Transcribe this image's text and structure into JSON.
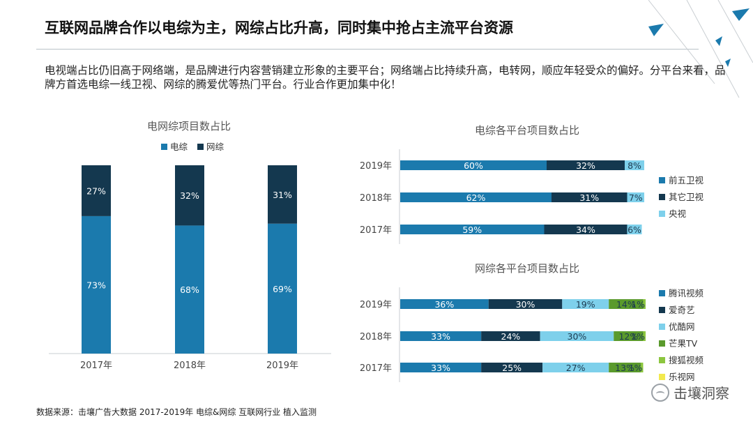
{
  "header": {
    "title": "互联网品牌合作以电综为主，网综占比升高，同时集中抢占主流平台资源",
    "subtitle": "电视端占比仍旧高于网络端，是品牌进行内容营销建立形象的主要平台；网络端占比持续升高，电转网，顺应年轻受众的偏好。分平台来看，品牌方首选电综一线卫视、网综的腾爱优等热门平台。行业合作更加集中化！"
  },
  "footer": {
    "source": "数据来源：击壤广告大数据 2017-2019年 电综&网综 互联网行业 植入监测",
    "brand": "击壤洞察"
  },
  "colors": {
    "dianzong": "#1b7aad",
    "wangzong": "#14384f",
    "qianwu": "#1b7aad",
    "qita": "#14384f",
    "yangshi": "#7ed0eb",
    "tengxun": "#1b7aad",
    "aiqiyi": "#14384f",
    "youku": "#7ed0eb",
    "mangguo": "#5a9a2c",
    "souhu": "#8cc63f",
    "leshi": "#f2e94e",
    "decor": "#1b7aad"
  },
  "chart_data": [
    {
      "type": "bar",
      "stacked": true,
      "orientation": "vertical",
      "title": "电网综项目数占比",
      "categories": [
        "2017年",
        "2018年",
        "2019年"
      ],
      "series": [
        {
          "name": "电综",
          "values": [
            73,
            68,
            69
          ],
          "labels": [
            "73%",
            "68%",
            "69%"
          ]
        },
        {
          "name": "网综",
          "values": [
            27,
            32,
            31
          ],
          "labels": [
            "27%",
            "32%",
            "31%"
          ]
        }
      ],
      "ylim": [
        0,
        100
      ],
      "grid": false,
      "legend": "top"
    },
    {
      "type": "bar",
      "stacked": true,
      "orientation": "horizontal",
      "title": "电综各平台项目数占比",
      "categories": [
        "2019年",
        "2018年",
        "2017年"
      ],
      "series": [
        {
          "name": "前五卫视",
          "values": [
            60,
            62,
            59
          ],
          "labels": [
            "60%",
            "62%",
            "59%"
          ]
        },
        {
          "name": "其它卫视",
          "values": [
            32,
            31,
            34
          ],
          "labels": [
            "32%",
            "31%",
            "34%"
          ]
        },
        {
          "name": "央视",
          "values": [
            8,
            7,
            6
          ],
          "labels": [
            "8%",
            "7%",
            "6%"
          ]
        }
      ],
      "xlim": [
        0,
        100
      ],
      "grid": false,
      "legend": "right"
    },
    {
      "type": "bar",
      "stacked": true,
      "orientation": "horizontal",
      "title": "网综各平台项目数占比",
      "categories": [
        "2019年",
        "2018年",
        "2017年"
      ],
      "series": [
        {
          "name": "腾讯视频",
          "values": [
            36,
            33,
            33
          ],
          "labels": [
            "36%",
            "33%",
            "33%"
          ]
        },
        {
          "name": "爱奇艺",
          "values": [
            30,
            24,
            25
          ],
          "labels": [
            "30%",
            "24%",
            "25%"
          ]
        },
        {
          "name": "优酷网",
          "values": [
            19,
            30,
            27
          ],
          "labels": [
            "19%",
            "30%",
            "27%"
          ]
        },
        {
          "name": "芒果TV",
          "values": [
            14,
            12,
            13
          ],
          "labels": [
            "14%",
            "12%",
            "13%"
          ]
        },
        {
          "name": "搜狐视频",
          "values": [
            1,
            1,
            1
          ],
          "labels": [
            "1%",
            "1%",
            "1%"
          ]
        },
        {
          "name": "乐视网",
          "values": [
            0,
            0,
            0
          ],
          "labels": [
            "",
            "",
            ""
          ]
        }
      ],
      "xlim": [
        0,
        100
      ],
      "grid": false,
      "legend": "right"
    }
  ]
}
